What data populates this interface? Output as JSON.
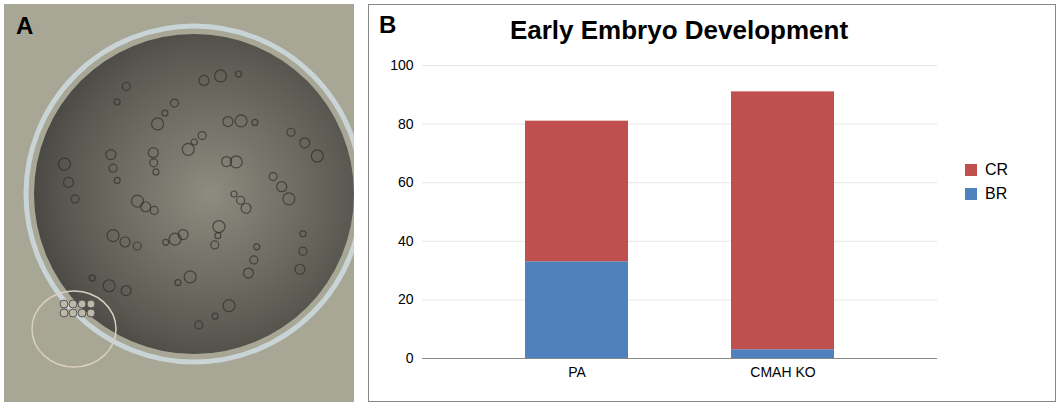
{
  "panel_labels": [
    "A",
    "B"
  ],
  "chart_data": {
    "type": "bar",
    "title": "Early Embryo Development",
    "categories": [
      "PA",
      "CMAH KO"
    ],
    "series": [
      {
        "name": "BR",
        "color": "#4f81bd",
        "values": [
          33,
          3
        ]
      },
      {
        "name": "CR",
        "color": "#c0504d",
        "values": [
          48,
          88
        ]
      }
    ],
    "stacked": true,
    "ylim": [
      0,
      100
    ],
    "yticks": [
      0,
      20,
      40,
      60,
      80,
      100
    ],
    "grid": true,
    "legend": "right"
  }
}
